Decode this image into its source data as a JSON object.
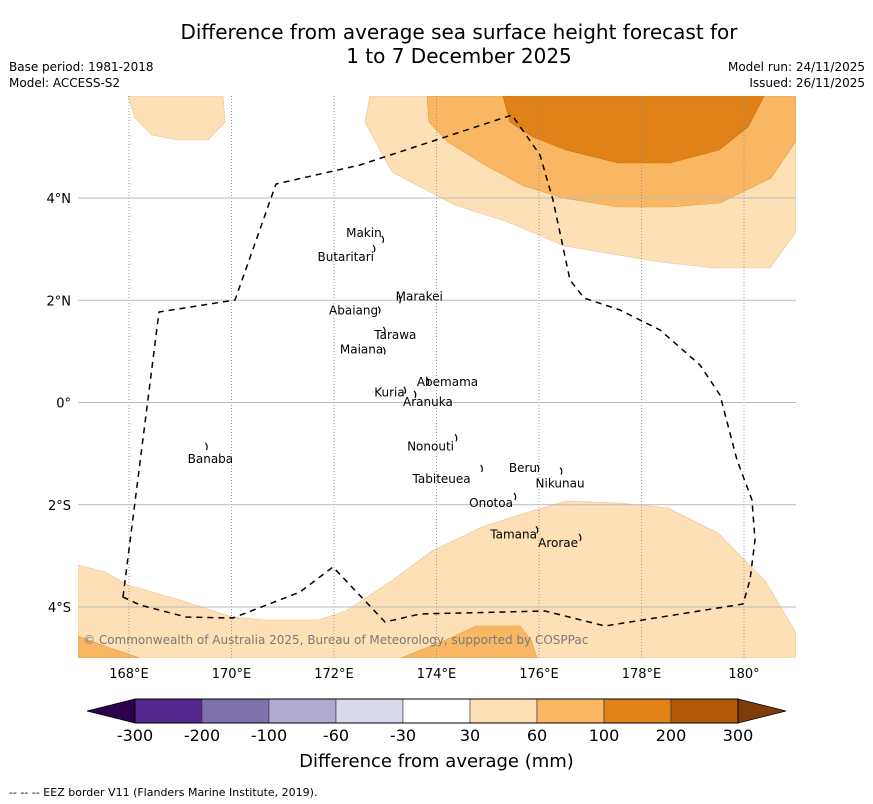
{
  "header": {
    "title_line1": "Difference from average sea surface height forecast for",
    "title_line2": "1 to 7 December 2025",
    "base_period": "Base period: 1981-2018",
    "model": "Model: ACCESS-S2",
    "model_run": "Model run: 24/11/2025",
    "issued": "Issued: 26/11/2025"
  },
  "map": {
    "lon_range": [
      167.0,
      181.0
    ],
    "lat_range": [
      -5.0,
      6.0
    ],
    "x_ticks": [
      {
        "value": 168,
        "label": "168°E"
      },
      {
        "value": 170,
        "label": "170°E"
      },
      {
        "value": 172,
        "label": "172°E"
      },
      {
        "value": 174,
        "label": "174°E"
      },
      {
        "value": 176,
        "label": "176°E"
      },
      {
        "value": 178,
        "label": "178°E"
      },
      {
        "value": 180,
        "label": "180°"
      }
    ],
    "y_ticks": [
      {
        "value": 4,
        "label": "4°N"
      },
      {
        "value": 2,
        "label": "2°N"
      },
      {
        "value": 0,
        "label": "0°"
      },
      {
        "value": -2,
        "label": "2°S"
      },
      {
        "value": -4,
        "label": "4°S"
      }
    ],
    "copyright": "© Commonwealth of Australia 2025, Bureau of Meteorology, supported by COSPPac",
    "islands": [
      {
        "name": "Makin",
        "lon": 172.97,
        "lat": 3.18
      },
      {
        "name": "Butaritari",
        "lon": 172.8,
        "lat": 3.0
      },
      {
        "name": "Marakei",
        "lon": 173.3,
        "lat": 2.0
      },
      {
        "name": "Abaiang",
        "lon": 172.9,
        "lat": 1.8
      },
      {
        "name": "Tarawa",
        "lon": 173.0,
        "lat": 1.4
      },
      {
        "name": "Maiana",
        "lon": 173.0,
        "lat": 1.0
      },
      {
        "name": "Abemama",
        "lon": 173.85,
        "lat": 0.4
      },
      {
        "name": "Kuria",
        "lon": 173.4,
        "lat": 0.23
      },
      {
        "name": "Aranuka",
        "lon": 173.6,
        "lat": 0.15
      },
      {
        "name": "Banaba",
        "lon": 169.53,
        "lat": -0.87
      },
      {
        "name": "Nonouti",
        "lon": 174.4,
        "lat": -0.7
      },
      {
        "name": "Tabiteuea",
        "lon": 174.9,
        "lat": -1.3
      },
      {
        "name": "Beru",
        "lon": 176.0,
        "lat": -1.3
      },
      {
        "name": "Nikunau",
        "lon": 176.45,
        "lat": -1.35
      },
      {
        "name": "Onotoa",
        "lon": 175.55,
        "lat": -1.85
      },
      {
        "name": "Tamana",
        "lon": 175.98,
        "lat": -2.5
      },
      {
        "name": "Arorae",
        "lon": 176.82,
        "lat": -2.65
      }
    ]
  },
  "colorbar": {
    "title": "Difference from average (mm)",
    "bounds": [
      "-300",
      "-200",
      "-100",
      "-60",
      "-30",
      "30",
      "60",
      "100",
      "200",
      "300"
    ],
    "colors": [
      "#54278f",
      "#7f71aa",
      "#b0a9d0",
      "#d9d9ea",
      "#ffffff",
      "#fde0b6",
      "#fab763",
      "#e08217",
      "#b35807"
    ],
    "under_color": "#2d004b",
    "over_color": "#7f3b08"
  },
  "footnote": "--  --  -- EEZ border V11 (Flanders Marine Institute, 2019)."
}
